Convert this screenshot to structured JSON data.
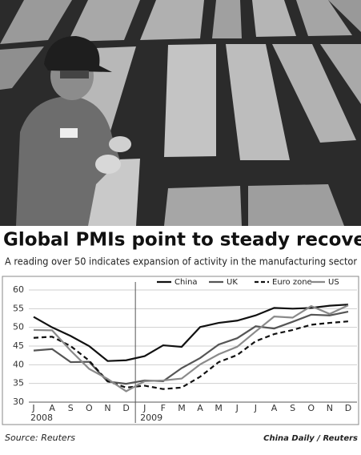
{
  "chart_data": {
    "type": "line",
    "title": "Global PMIs point to steady recovery",
    "subtitle": "A reading over 50 indicates expansion of activity in the manufacturing sector",
    "categories": [
      "J",
      "A",
      "S",
      "O",
      "N",
      "D",
      "J",
      "F",
      "M",
      "A",
      "M",
      "J",
      "J",
      "A",
      "S",
      "O",
      "N",
      "D"
    ],
    "years": [
      "2008",
      "2009"
    ],
    "series": [
      {
        "name": "China",
        "color": "#111111",
        "line_style": "solid",
        "values": [
          52.8,
          50.0,
          47.7,
          45.0,
          41.0,
          41.2,
          42.3,
          45.2,
          44.8,
          50.1,
          51.2,
          51.8,
          53.2,
          55.2,
          55.0,
          55.2,
          55.8,
          56.1
        ]
      },
      {
        "name": "UK",
        "color": "#555555",
        "line_style": "solid",
        "values": [
          43.8,
          44.2,
          40.7,
          40.8,
          35.5,
          34.9,
          35.8,
          35.6,
          39.1,
          41.8,
          45.4,
          47.1,
          50.3,
          49.7,
          51.5,
          53.4,
          53.2,
          54.2
        ]
      },
      {
        "name": "Euro zone",
        "color": "#111111",
        "line_style": "dashed",
        "values": [
          47.2,
          47.5,
          45.0,
          41.1,
          35.6,
          33.9,
          34.4,
          33.5,
          33.9,
          36.8,
          40.7,
          42.6,
          46.3,
          48.2,
          49.3,
          50.7,
          51.2,
          51.6
        ]
      },
      {
        "name": "US",
        "color": "#8a8a8a",
        "line_style": "solid",
        "values": [
          49.3,
          49.2,
          43.8,
          38.9,
          36.2,
          32.9,
          35.6,
          35.8,
          36.3,
          40.1,
          42.8,
          44.8,
          48.9,
          52.9,
          52.6,
          55.7,
          53.6,
          55.9
        ]
      }
    ],
    "ylim": [
      30,
      60
    ],
    "yticks": [
      30,
      35,
      40,
      45,
      50,
      55,
      60
    ],
    "grid": true,
    "legend": "top-right",
    "source": "Source: Reuters",
    "credit": "China Daily / Reuters"
  }
}
